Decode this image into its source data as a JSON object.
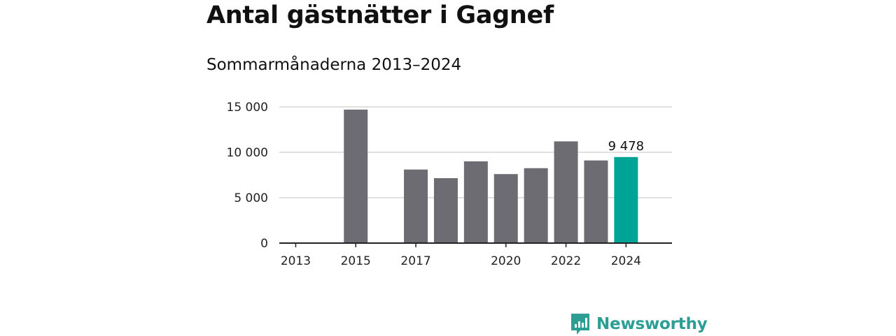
{
  "header": {
    "title": "Antal gästnätter i Gagnef",
    "subtitle": "Sommarmånaderna 2013–2024"
  },
  "brand": {
    "name": "Newsworthy",
    "icon": "bar-chart-bubble-icon",
    "color": "#2d9e94"
  },
  "chart_data": {
    "type": "bar",
    "categories": [
      "2013",
      "2014",
      "2015",
      "2016",
      "2017",
      "2018",
      "2019",
      "2020",
      "2021",
      "2022",
      "2023",
      "2024"
    ],
    "values": [
      null,
      null,
      14700,
      null,
      8100,
      7150,
      9000,
      7600,
      8250,
      11200,
      9100,
      9478
    ],
    "x_tick_labels": [
      "2013",
      "2015",
      "2017",
      "2020",
      "2022",
      "2024"
    ],
    "y_ticks": [
      0,
      5000,
      10000,
      15000
    ],
    "y_tick_labels": [
      "0",
      "5 000",
      "10 000",
      "15 000"
    ],
    "ylim": [
      0,
      15000
    ],
    "grid": true,
    "bar_color": "#6d6c72",
    "highlight_color": "#00a497",
    "highlight_category": "2024",
    "highlight_label": "9 478"
  }
}
